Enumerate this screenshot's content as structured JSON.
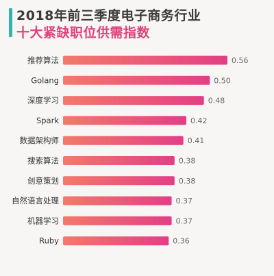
{
  "header": {
    "title_line1": "2018年前三季度电子商务行业",
    "title_line2": "十大紧缺职位供需指数"
  },
  "colors": {
    "accent_bar": "#2fb3b3",
    "title_dark": "#3a3a3a",
    "title_pink": "#e0427a",
    "bar_left": "#f27a6a",
    "bar_right": "#e23f86"
  },
  "chart_data": {
    "type": "bar",
    "orientation": "horizontal",
    "title": "2018年前三季度电子商务行业十大紧缺职位供需指数",
    "categories": [
      "推荐算法",
      "Golang",
      "深度学习",
      "Spark",
      "数据架构师",
      "搜索算法",
      "创意策划",
      "自然语言处理",
      "机器学习",
      "Ruby"
    ],
    "values": [
      0.56,
      0.5,
      0.48,
      0.42,
      0.41,
      0.38,
      0.38,
      0.37,
      0.37,
      0.36
    ],
    "value_labels": [
      "0.56",
      "0.50",
      "0.48",
      "0.42",
      "0.41",
      "0.38",
      "0.38",
      "0.37",
      "0.37",
      "0.36"
    ],
    "xlim": [
      0,
      0.56
    ],
    "grid": false,
    "legend": "none"
  }
}
